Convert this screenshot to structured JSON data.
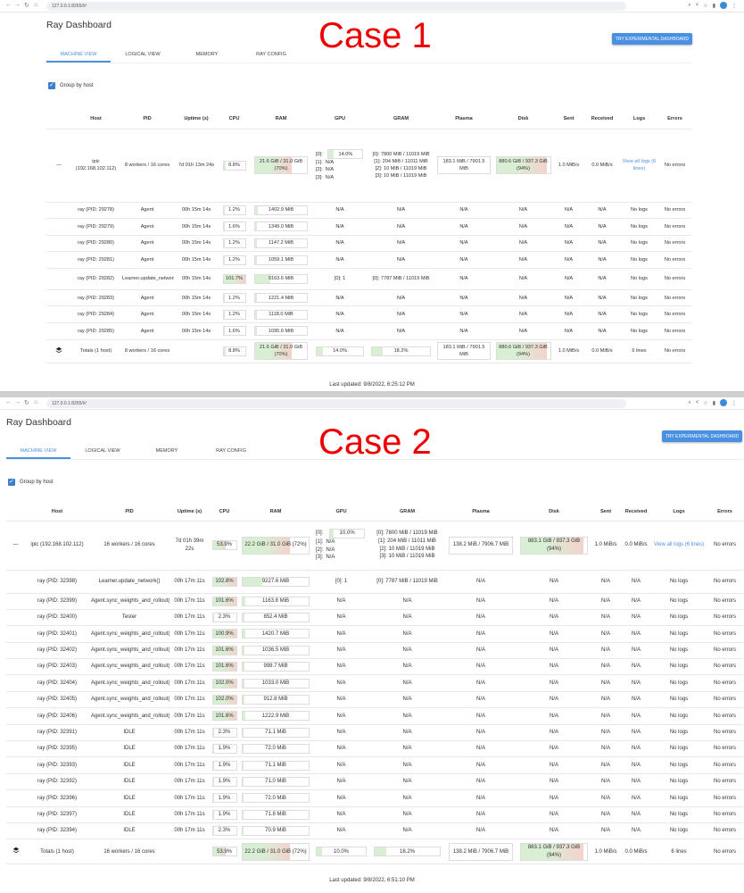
{
  "cases": [
    {
      "url": "127.0.0.1:8265/#/",
      "case_label": "Case 1",
      "title": "Ray Dashboard",
      "experimental_button": "TRY EXPERIMENTAL DASHBOARD",
      "tabs": [
        "MACHINE VIEW",
        "LOGICAL VIEW",
        "MEMORY",
        "RAY CONFIG"
      ],
      "group_by_host": "Group by host",
      "headers": [
        "",
        "Host",
        "PID",
        "Uptime (s)",
        "CPU",
        "RAM",
        "GPU",
        "GRAM",
        "Plasma",
        "Disk",
        "Sent",
        "Received",
        "Logs",
        "Errors"
      ],
      "host": {
        "expander": "—",
        "host": "ipic (192.168.102.112)",
        "pid": "8 workers / 16 cores",
        "uptime": "7d 01h 13m 24s",
        "cpu": "8.8%",
        "cpu_pct": 8.8,
        "ram": "21.6 GiB / 31.0 GiB (70%)",
        "ram_pct": 70,
        "gpus": [
          {
            "id": "[0]:",
            "value": "14.0%",
            "pct": 14
          },
          {
            "id": "[1]:",
            "value": "N/A"
          },
          {
            "id": "[2]:",
            "value": "N/A"
          },
          {
            "id": "[3]:",
            "value": "N/A"
          }
        ],
        "gram": [
          "[0]: 7800 MiB / 11019 MiB",
          "[1]: 204 MiB / 11011 MiB",
          "[2]: 10 MiB / 11019 MiB",
          "[3]: 10 MiB / 11019 MiB"
        ],
        "plasma": "183.1 MiB / 7901.5 MiB",
        "disk": "880.6 GiB / 937.3 GiB (94%)",
        "disk_pct": 94,
        "sent": "1.0 MiB/s",
        "received": "0.0 MiB/s",
        "logs": "View all logs (6 lines)",
        "errors": "No errors"
      },
      "workers": [
        {
          "host": "ray (PID: 29278)",
          "pid": "Agent",
          "uptime": "00h 15m 14s",
          "cpu": "1.2%",
          "cpu_pct": 1.2,
          "ram": "1402.9 MiB",
          "ram_pct": 4.4,
          "gpu": "N/A",
          "gram": "N/A",
          "plasma": "N/A",
          "disk": "N/A",
          "sent": "N/A",
          "received": "N/A",
          "logs": "No logs",
          "errors": "No errors"
        },
        {
          "host": "ray (PID: 29279)",
          "pid": "Agent",
          "uptime": "00h 15m 14s",
          "cpu": "1.6%",
          "cpu_pct": 1.6,
          "ram": "1349.0 MiB",
          "ram_pct": 4.2,
          "gpu": "N/A",
          "gram": "N/A",
          "plasma": "N/A",
          "disk": "N/A",
          "sent": "N/A",
          "received": "N/A",
          "logs": "No logs",
          "errors": "No errors"
        },
        {
          "host": "ray (PID: 29280)",
          "pid": "Agent",
          "uptime": "00h 15m 14s",
          "cpu": "1.2%",
          "cpu_pct": 1.2,
          "ram": "1147.2 MiB",
          "ram_pct": 3.6,
          "gpu": "N/A",
          "gram": "N/A",
          "plasma": "N/A",
          "disk": "N/A",
          "sent": "N/A",
          "received": "N/A",
          "logs": "No logs",
          "errors": "No errors"
        },
        {
          "host": "ray (PID: 29281)",
          "pid": "Agent",
          "uptime": "00h 15m 14s",
          "cpu": "1.2%",
          "cpu_pct": 1.2,
          "ram": "1059.1 MiB",
          "ram_pct": 3.3,
          "gpu": "N/A",
          "gram": "N/A",
          "plasma": "N/A",
          "disk": "N/A",
          "sent": "N/A",
          "received": "N/A",
          "logs": "No logs",
          "errors": "No errors"
        },
        {
          "host": "ray (PID: 29282)",
          "pid": "Learner.update_network()",
          "uptime": "00h 15m 14s",
          "cpu": "101.7%",
          "cpu_pct": 100,
          "ram": "9163.6 MiB",
          "ram_pct": 28.9,
          "gpu": "[0]: 1",
          "gram": "[0]: 7787 MiB / 11019 MiB",
          "plasma": "N/A",
          "disk": "N/A",
          "sent": "N/A",
          "received": "N/A",
          "logs": "No logs",
          "errors": "No errors"
        },
        {
          "host": "ray (PID: 29283)",
          "pid": "Agent",
          "uptime": "00h 15m 14s",
          "cpu": "1.2%",
          "cpu_pct": 1.2,
          "ram": "1221.4 MiB",
          "ram_pct": 3.8,
          "gpu": "N/A",
          "gram": "N/A",
          "plasma": "N/A",
          "disk": "N/A",
          "sent": "N/A",
          "received": "N/A",
          "logs": "No logs",
          "errors": "No errors"
        },
        {
          "host": "ray (PID: 29284)",
          "pid": "Agent",
          "uptime": "00h 15m 14s",
          "cpu": "1.2%",
          "cpu_pct": 1.2,
          "ram": "1118.0 MiB",
          "ram_pct": 3.5,
          "gpu": "N/A",
          "gram": "N/A",
          "plasma": "N/A",
          "disk": "N/A",
          "sent": "N/A",
          "received": "N/A",
          "logs": "No logs",
          "errors": "No errors"
        },
        {
          "host": "ray (PID: 29285)",
          "pid": "Agent",
          "uptime": "00h 15m 14s",
          "cpu": "1.6%",
          "cpu_pct": 1.6,
          "ram": "1095.6 MiB",
          "ram_pct": 3.4,
          "gpu": "N/A",
          "gram": "N/A",
          "plasma": "N/A",
          "disk": "N/A",
          "sent": "N/A",
          "received": "N/A",
          "logs": "No logs",
          "errors": "No errors"
        }
      ],
      "totals": {
        "icon": "layers-icon",
        "host": "Totals (1 host)",
        "pid": "8 workers / 16 cores",
        "uptime": "",
        "cpu": "8.8%",
        "cpu_pct": 8.8,
        "ram": "21.6 GiB / 31.0 GiB (70%)",
        "ram_pct": 70,
        "gpu": "14.0%",
        "gpu_pct": 14,
        "gram": "18.2%",
        "gram_pct": 18.2,
        "plasma": "183.1 MiB / 7901.5 MiB",
        "disk": "880.6 GiB / 937.3 GiB (94%)",
        "disk_pct": 94,
        "sent": "1.0 MiB/s",
        "received": "0.0 MiB/s",
        "logs": "6 lines",
        "errors": "No errors"
      },
      "last_updated": "Last updated: 9/8/2022, 6:25:12 PM"
    },
    {
      "url": "127.0.0.1:8265/#/",
      "case_label": "Case 2",
      "title": "Ray Dashboard",
      "experimental_button": "TRY EXPERIMENTAL DASHBOARD",
      "tabs": [
        "MACHINE VIEW",
        "LOGICAL VIEW",
        "MEMORY",
        "RAY CONFIG"
      ],
      "group_by_host": "Group by host",
      "headers": [
        "",
        "Host",
        "PID",
        "Uptime (s)",
        "CPU",
        "RAM",
        "GPU",
        "GRAM",
        "Plasma",
        "Disk",
        "Sent",
        "Received",
        "Logs",
        "Errors"
      ],
      "host": {
        "expander": "—",
        "host": "ipic (192.168.102.112)",
        "pid": "16 workers / 16 cores",
        "uptime": "7d 01h 39m 22s",
        "cpu": "53.9%",
        "cpu_pct": 53.9,
        "ram": "22.2 GiB / 31.0 GiB (72%)",
        "ram_pct": 72,
        "gpus": [
          {
            "id": "[0]:",
            "value": "10.0%",
            "pct": 10
          },
          {
            "id": "[1]:",
            "value": "N/A"
          },
          {
            "id": "[2]:",
            "value": "N/A"
          },
          {
            "id": "[3]:",
            "value": "N/A"
          }
        ],
        "gram": [
          "[0]: 7800 MiB / 11019 MiB",
          "[1]: 204 MiB / 11011 MiB",
          "[2]: 10 MiB / 11019 MiB",
          "[3]: 10 MiB / 11019 MiB"
        ],
        "plasma": "138.2 MiB / 7906.7 MiB",
        "disk": "883.1 GiB / 937.3 GiB (94%)",
        "disk_pct": 94,
        "sent": "1.0 MiB/s",
        "received": "0.0 MiB/s",
        "logs": "View all logs (6 lines)",
        "errors": "No errors"
      },
      "workers": [
        {
          "host": "ray (PID: 32398)",
          "pid": "Learner.update_network()",
          "uptime": "00h 17m 11s",
          "cpu": "102.8%",
          "cpu_pct": 100,
          "ram": "9227.6 MiB",
          "ram_pct": 29.1,
          "gpu": "[0]: 1",
          "gram": "[0]: 7787 MiB / 11019 MiB",
          "plasma": "N/A",
          "disk": "N/A",
          "sent": "N/A",
          "received": "N/A",
          "logs": "No logs",
          "errors": "No errors"
        },
        {
          "host": "ray (PID: 32399)",
          "pid": "Agent.sync_weights_and_rollout()",
          "uptime": "00h 17m 11s",
          "cpu": "101.6%",
          "cpu_pct": 100,
          "ram": "1163.8 MiB",
          "ram_pct": 3.7,
          "gpu": "N/A",
          "gram": "N/A",
          "plasma": "N/A",
          "disk": "N/A",
          "sent": "N/A",
          "received": "N/A",
          "logs": "No logs",
          "errors": "No errors"
        },
        {
          "host": "ray (PID: 32400)",
          "pid": "Tester",
          "uptime": "00h 17m 11s",
          "cpu": "2.3%",
          "cpu_pct": 2.3,
          "ram": "852.4 MiB",
          "ram_pct": 2.7,
          "gpu": "N/A",
          "gram": "N/A",
          "plasma": "N/A",
          "disk": "N/A",
          "sent": "N/A",
          "received": "N/A",
          "logs": "No logs",
          "errors": "No errors"
        },
        {
          "host": "ray (PID: 32401)",
          "pid": "Agent.sync_weights_and_rollout()",
          "uptime": "00h 17m 11s",
          "cpu": "100.9%",
          "cpu_pct": 100,
          "ram": "1420.7 MiB",
          "ram_pct": 4.5,
          "gpu": "N/A",
          "gram": "N/A",
          "plasma": "N/A",
          "disk": "N/A",
          "sent": "N/A",
          "received": "N/A",
          "logs": "No logs",
          "errors": "No errors"
        },
        {
          "host": "ray (PID: 32402)",
          "pid": "Agent.sync_weights_and_rollout()",
          "uptime": "00h 17m 11s",
          "cpu": "101.6%",
          "cpu_pct": 100,
          "ram": "1036.5 MiB",
          "ram_pct": 3.3,
          "gpu": "N/A",
          "gram": "N/A",
          "plasma": "N/A",
          "disk": "N/A",
          "sent": "N/A",
          "received": "N/A",
          "logs": "No logs",
          "errors": "No errors"
        },
        {
          "host": "ray (PID: 32403)",
          "pid": "Agent.sync_weights_and_rollout()",
          "uptime": "00h 17m 11s",
          "cpu": "101.6%",
          "cpu_pct": 100,
          "ram": "998.7 MiB",
          "ram_pct": 3.1,
          "gpu": "N/A",
          "gram": "N/A",
          "plasma": "N/A",
          "disk": "N/A",
          "sent": "N/A",
          "received": "N/A",
          "logs": "No logs",
          "errors": "No errors"
        },
        {
          "host": "ray (PID: 32404)",
          "pid": "Agent.sync_weights_and_rollout()",
          "uptime": "00h 17m 11s",
          "cpu": "102.0%",
          "cpu_pct": 100,
          "ram": "1033.0 MiB",
          "ram_pct": 3.3,
          "gpu": "N/A",
          "gram": "N/A",
          "plasma": "N/A",
          "disk": "N/A",
          "sent": "N/A",
          "received": "N/A",
          "logs": "No logs",
          "errors": "No errors"
        },
        {
          "host": "ray (PID: 32405)",
          "pid": "Agent.sync_weights_and_rollout()",
          "uptime": "00h 17m 11s",
          "cpu": "102.0%",
          "cpu_pct": 100,
          "ram": "912.8 MiB",
          "ram_pct": 2.9,
          "gpu": "N/A",
          "gram": "N/A",
          "plasma": "N/A",
          "disk": "N/A",
          "sent": "N/A",
          "received": "N/A",
          "logs": "No logs",
          "errors": "No errors"
        },
        {
          "host": "ray (PID: 32406)",
          "pid": "Agent.sync_weights_and_rollout()",
          "uptime": "00h 17m 11s",
          "cpu": "101.6%",
          "cpu_pct": 100,
          "ram": "1222.9 MiB",
          "ram_pct": 3.9,
          "gpu": "N/A",
          "gram": "N/A",
          "plasma": "N/A",
          "disk": "N/A",
          "sent": "N/A",
          "received": "N/A",
          "logs": "No logs",
          "errors": "No errors"
        },
        {
          "host": "ray (PID: 32391)",
          "pid": "IDLE",
          "uptime": "00h 17m 11s",
          "cpu": "2.3%",
          "cpu_pct": 2.3,
          "ram": "71.1 MiB",
          "ram_pct": 0.2,
          "gpu": "N/A",
          "gram": "N/A",
          "plasma": "N/A",
          "disk": "N/A",
          "sent": "N/A",
          "received": "N/A",
          "logs": "No logs",
          "errors": "No errors"
        },
        {
          "host": "ray (PID: 32395)",
          "pid": "IDLE",
          "uptime": "00h 17m 11s",
          "cpu": "1.9%",
          "cpu_pct": 1.9,
          "ram": "72.0 MiB",
          "ram_pct": 0.2,
          "gpu": "N/A",
          "gram": "N/A",
          "plasma": "N/A",
          "disk": "N/A",
          "sent": "N/A",
          "received": "N/A",
          "logs": "No logs",
          "errors": "No errors"
        },
        {
          "host": "ray (PID: 32393)",
          "pid": "IDLE",
          "uptime": "00h 17m 11s",
          "cpu": "1.9%",
          "cpu_pct": 1.9,
          "ram": "71.1 MiB",
          "ram_pct": 0.2,
          "gpu": "N/A",
          "gram": "N/A",
          "plasma": "N/A",
          "disk": "N/A",
          "sent": "N/A",
          "received": "N/A",
          "logs": "No logs",
          "errors": "No errors"
        },
        {
          "host": "ray (PID: 32392)",
          "pid": "IDLE",
          "uptime": "00h 17m 11s",
          "cpu": "1.9%",
          "cpu_pct": 1.9,
          "ram": "71.0 MiB",
          "ram_pct": 0.2,
          "gpu": "N/A",
          "gram": "N/A",
          "plasma": "N/A",
          "disk": "N/A",
          "sent": "N/A",
          "received": "N/A",
          "logs": "No logs",
          "errors": "No errors"
        },
        {
          "host": "ray (PID: 32396)",
          "pid": "IDLE",
          "uptime": "00h 17m 11s",
          "cpu": "1.9%",
          "cpu_pct": 1.9,
          "ram": "72.0 MiB",
          "ram_pct": 0.2,
          "gpu": "N/A",
          "gram": "N/A",
          "plasma": "N/A",
          "disk": "N/A",
          "sent": "N/A",
          "received": "N/A",
          "logs": "No logs",
          "errors": "No errors"
        },
        {
          "host": "ray (PID: 32397)",
          "pid": "IDLE",
          "uptime": "00h 17m 11s",
          "cpu": "1.9%",
          "cpu_pct": 1.9,
          "ram": "71.8 MiB",
          "ram_pct": 0.2,
          "gpu": "N/A",
          "gram": "N/A",
          "plasma": "N/A",
          "disk": "N/A",
          "sent": "N/A",
          "received": "N/A",
          "logs": "No logs",
          "errors": "No errors"
        },
        {
          "host": "ray (PID: 32394)",
          "pid": "IDLE",
          "uptime": "00h 17m 11s",
          "cpu": "2.3%",
          "cpu_pct": 2.3,
          "ram": "70.9 MiB",
          "ram_pct": 0.2,
          "gpu": "N/A",
          "gram": "N/A",
          "plasma": "N/A",
          "disk": "N/A",
          "sent": "N/A",
          "received": "N/A",
          "logs": "No logs",
          "errors": "No errors"
        }
      ],
      "totals": {
        "icon": "layers-icon",
        "host": "Totals (1 host)",
        "pid": "16 workers / 16 cores",
        "uptime": "",
        "cpu": "53.9%",
        "cpu_pct": 53.9,
        "ram": "22.2 GiB / 31.0 GiB (72%)",
        "ram_pct": 72,
        "gpu": "10.0%",
        "gpu_pct": 10,
        "gram": "18.2%",
        "gram_pct": 18.2,
        "plasma": "138.2 MiB / 7906.7 MiB",
        "disk": "883.1 GiB / 937.3 GiB (94%)",
        "disk_pct": 94,
        "sent": "1.0 MiB/s",
        "received": "0.0 MiB/s",
        "logs": "6 lines",
        "errors": "No errors"
      },
      "last_updated": "Last updated: 9/8/2022, 6:51:10 PM"
    }
  ],
  "colors": {
    "accent": "#4a90e2",
    "case_label": "#e00000",
    "bar_ok": "#d9efd4",
    "bar_high": "#f3d2cc"
  }
}
